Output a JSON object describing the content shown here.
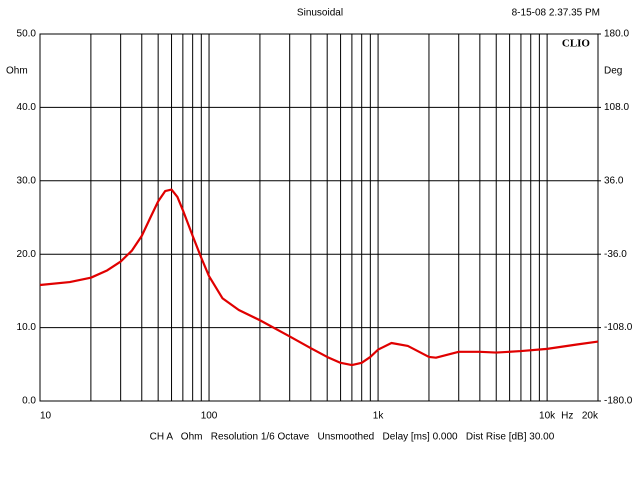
{
  "chart_data": {
    "type": "line",
    "title": "Sinusoidal",
    "timestamp": "8-15-08 2.37.35 PM",
    "logo": "CLIO",
    "y_label": "Ohm",
    "y2_label": "Deg",
    "x_label": "Hz",
    "footer": "CH A   Ohm   Resolution 1/6 Octave   Unsmoothed   Delay [ms] 0.000   Dist Rise [dB] 30.00",
    "x_log": true,
    "grid": true,
    "xlim": [
      10,
      20000
    ],
    "xticks": [
      10,
      100,
      {
        "value": 1000,
        "label": "1k"
      },
      {
        "value": 10000,
        "label": "10k"
      },
      {
        "value": 20000,
        "label": "20k"
      }
    ],
    "minor_xticks": [
      20,
      30,
      40,
      50,
      60,
      70,
      80,
      90,
      200,
      300,
      400,
      500,
      600,
      700,
      800,
      900,
      2000,
      3000,
      4000,
      5000,
      6000,
      7000,
      8000,
      9000
    ],
    "ylim": [
      0,
      50
    ],
    "yticks": [
      {
        "value": 0,
        "label": "0.0"
      },
      {
        "value": 10,
        "label": "10.0"
      },
      {
        "value": 20,
        "label": "20.0"
      },
      {
        "value": 30,
        "label": "30.0"
      },
      {
        "value": 40,
        "label": "40.0"
      },
      {
        "value": 50,
        "label": "50.0"
      }
    ],
    "y2lim": [
      -180,
      180
    ],
    "y2ticks": [
      {
        "value": -180,
        "label": "-180.0"
      },
      {
        "value": -108,
        "label": "-108.0"
      },
      {
        "value": -36,
        "label": "-36.0"
      },
      {
        "value": 36,
        "label": "36.0"
      },
      {
        "value": 108,
        "label": "108.0"
      },
      {
        "value": 180,
        "label": "180.0"
      }
    ],
    "series": [
      {
        "color": "#e00000",
        "x": [
          10,
          15,
          20,
          25,
          30,
          35,
          40,
          45,
          50,
          55,
          60,
          65,
          70,
          80,
          90,
          100,
          120,
          150,
          200,
          300,
          400,
          500,
          600,
          700,
          800,
          900,
          1000,
          1200,
          1500,
          2000,
          2200,
          3000,
          4000,
          5000,
          7000,
          10000,
          15000,
          20000
        ],
        "values": [
          15.8,
          16.2,
          16.8,
          17.8,
          19,
          20.5,
          22.5,
          25,
          27.2,
          28.6,
          28.8,
          27.8,
          26,
          22.5,
          19.5,
          17,
          14,
          12.4,
          11,
          8.8,
          7.2,
          6,
          5.2,
          4.9,
          5.2,
          6,
          7,
          7.9,
          7.5,
          6,
          5.9,
          6.7,
          6.7,
          6.6,
          6.8,
          7.1,
          7.7,
          8.1
        ]
      }
    ]
  }
}
